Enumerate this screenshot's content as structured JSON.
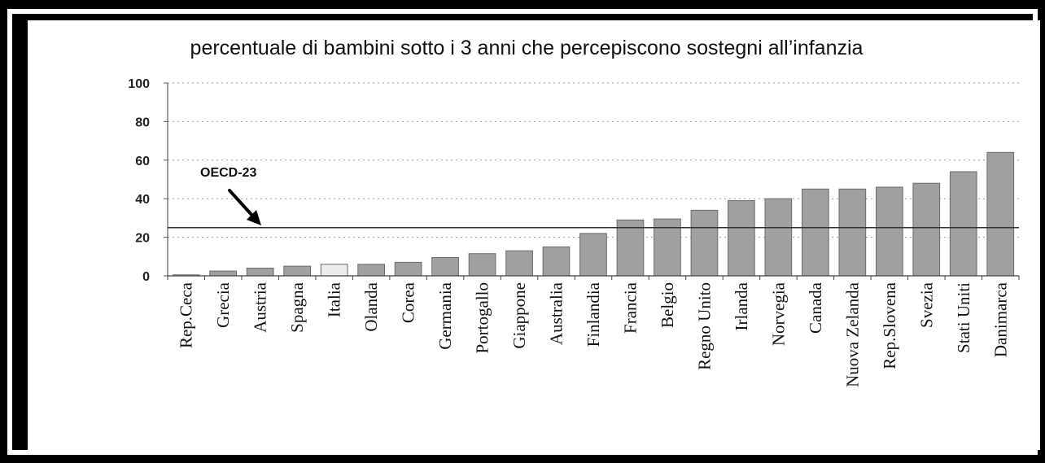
{
  "chart_data": {
    "type": "bar",
    "title": "percentuale di bambini sotto i 3 anni che percepiscono sostegni all’infanzia",
    "xlabel": "",
    "ylabel": "",
    "ylim": [
      0,
      100
    ],
    "yticks": [
      "0",
      "20",
      "40",
      "60",
      "80",
      "100"
    ],
    "grid": "horizontal-dotted",
    "categories": [
      "Rep.Ceca",
      "Grecia",
      "Austria",
      "Spagna",
      "Italia",
      "Olanda",
      "Corea",
      "Germania",
      "Portogallo",
      "Giappone",
      "Australia",
      "Finlandia",
      "Francia",
      "Belgio",
      "Regno Unito",
      "Irlanda",
      "Norvegia",
      "Canada",
      "Nuova Zelanda",
      "Rep.Slovena",
      "Svezia",
      "Stati Uniti",
      "Danimarca"
    ],
    "values": [
      0.5,
      2.5,
      4,
      5,
      6,
      6,
      7,
      9.5,
      11.5,
      13,
      15,
      22,
      29,
      29.5,
      34,
      39,
      40,
      45,
      45,
      46,
      48,
      54,
      64
    ],
    "highlight_category": "Italia",
    "bar_color": "#a0a0a0",
    "highlight_color": "#ececec",
    "reference_line": {
      "label": "OECD-23",
      "value": 25
    }
  }
}
